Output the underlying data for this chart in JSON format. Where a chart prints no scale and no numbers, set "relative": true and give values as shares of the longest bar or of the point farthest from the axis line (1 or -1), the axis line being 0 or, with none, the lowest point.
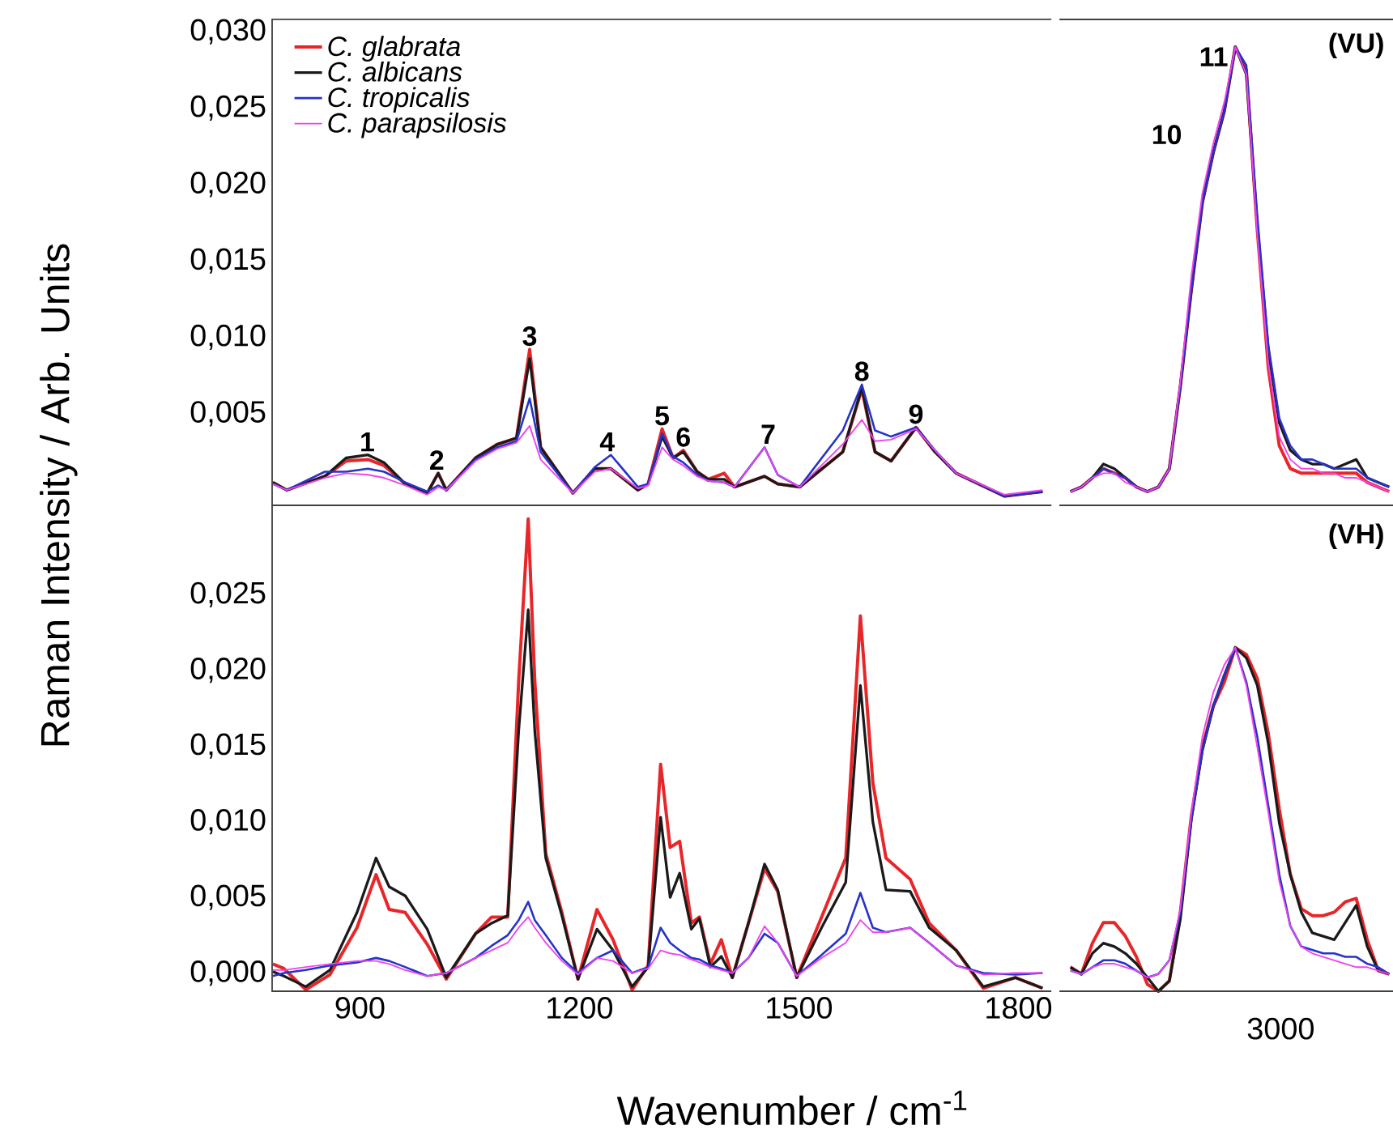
{
  "chart_data": [
    {
      "type": "line",
      "ylabel": "Raman Intensity / Arb. Units",
      "xlim": [
        780,
        1845
      ],
      "ylim": [
        -0.001,
        0.0308
      ],
      "xticks": [
        900,
        1200,
        1500,
        1800
      ],
      "yticks": [
        {
          "value": 0.005,
          "label": "0,005"
        },
        {
          "value": 0.01,
          "label": "0,010"
        },
        {
          "value": 0.015,
          "label": "0,015"
        },
        {
          "value": 0.02,
          "label": "0,020"
        },
        {
          "value": 0.025,
          "label": "0,025"
        },
        {
          "value": 0.03,
          "label": "0,030"
        }
      ],
      "tick_labels": "y",
      "legend": "top left",
      "x": [
        781,
        800,
        852,
        881,
        911,
        933,
        962,
        992,
        1007,
        1018,
        1058,
        1088,
        1114,
        1132,
        1147,
        1191,
        1221,
        1243,
        1280,
        1294,
        1313,
        1328,
        1342,
        1361,
        1376,
        1398,
        1412,
        1453,
        1471,
        1501,
        1560,
        1586,
        1604,
        1626,
        1660,
        1686,
        1715,
        1781,
        1833
      ],
      "series": [
        {
          "name": "C. glabrata",
          "color": "#e8262a",
          "values": [
            0.0005,
            0.0,
            0.0009,
            0.0019,
            0.002,
            0.0016,
            0.0004,
            -0.0002,
            0.0011,
            0.0,
            0.0021,
            0.003,
            0.0034,
            0.0092,
            0.0028,
            -0.0002,
            0.0014,
            0.0014,
            0.0,
            0.0004,
            0.004,
            0.0021,
            0.0026,
            0.0012,
            0.0007,
            0.0011,
            0.0002,
            0.0009,
            0.0004,
            0.0002,
            0.0025,
            0.0066,
            0.0025,
            0.0019,
            0.0041,
            0.0025,
            0.0011,
            -0.0004,
            -0.0001
          ]
        },
        {
          "name": "C. albicans",
          "color": "#1a1a1a",
          "values": [
            0.0005,
            0.0,
            0.0009,
            0.0021,
            0.0023,
            0.0018,
            0.0004,
            -0.0002,
            0.0011,
            0.0,
            0.0021,
            0.003,
            0.0034,
            0.0086,
            0.0028,
            -0.0002,
            0.0014,
            0.0014,
            0.0,
            0.0004,
            0.0035,
            0.0021,
            0.0025,
            0.0012,
            0.0007,
            0.0007,
            0.0002,
            0.0009,
            0.0004,
            0.0002,
            0.0025,
            0.0067,
            0.0025,
            0.0019,
            0.0041,
            0.0025,
            0.0011,
            -0.0004,
            -0.0001
          ]
        },
        {
          "name": "C. tropicalis",
          "color": "#2633c8",
          "values": [
            0.0004,
            0.0,
            0.0012,
            0.0012,
            0.0014,
            0.0012,
            0.0005,
            -0.0001,
            0.0003,
            0.0,
            0.002,
            0.0028,
            0.0032,
            0.006,
            0.0025,
            -0.0002,
            0.0015,
            0.0023,
            0.0002,
            0.0004,
            0.0037,
            0.0022,
            0.0018,
            0.001,
            0.0006,
            0.0005,
            0.0002,
            0.0028,
            0.001,
            0.0002,
            0.0039,
            0.0069,
            0.0039,
            0.0035,
            0.0041,
            0.0026,
            0.0011,
            -0.0004,
            -0.0001
          ]
        },
        {
          "name": "C. parapsilosis",
          "color": "#ee44ee",
          "values": [
            0.0004,
            0.0,
            0.0008,
            0.0011,
            0.001,
            0.0008,
            0.0003,
            -0.0003,
            0.0002,
            0.0,
            0.0019,
            0.0027,
            0.0031,
            0.0042,
            0.002,
            -0.0002,
            0.0012,
            0.0014,
            0.0001,
            0.0003,
            0.0028,
            0.002,
            0.0016,
            0.0009,
            0.0006,
            0.0005,
            0.0002,
            0.0028,
            0.001,
            0.0002,
            0.003,
            0.0046,
            0.0032,
            0.0033,
            0.004,
            0.0026,
            0.0011,
            -0.0003,
            0.0
          ]
        }
      ],
      "annotations": [
        {
          "text": "1",
          "x": 910,
          "y": 0.0023
        },
        {
          "text": "2",
          "x": 1005,
          "y": 0.0011
        },
        {
          "text": "3",
          "x": 1132,
          "y": 0.0092
        },
        {
          "text": "4",
          "x": 1238,
          "y": 0.0023
        },
        {
          "text": "5",
          "x": 1313,
          "y": 0.004
        },
        {
          "text": "6",
          "x": 1342,
          "y": 0.0026
        },
        {
          "text": "7",
          "x": 1458,
          "y": 0.0028
        },
        {
          "text": "8",
          "x": 1586,
          "y": 0.0069
        },
        {
          "text": "9",
          "x": 1660,
          "y": 0.0041
        }
      ]
    },
    {
      "type": "line",
      "relative": true,
      "categories": [
        null,
        null,
        null,
        null,
        null,
        null,
        null,
        null,
        null,
        null,
        null,
        null,
        null,
        null,
        null,
        null,
        null,
        null,
        null,
        null,
        null,
        null,
        null,
        null,
        null,
        null,
        null,
        null,
        null,
        null
      ],
      "series": [
        {
          "color": "#e8262a",
          "values": [
            0.03,
            0.04,
            0.06,
            0.08,
            0.07,
            0.06,
            0.04,
            0.03,
            0.04,
            0.08,
            0.26,
            0.47,
            0.66,
            0.77,
            0.86,
            1.0,
            0.95,
            0.6,
            0.3,
            0.13,
            0.08,
            0.07,
            0.07,
            0.07,
            0.07,
            0.07,
            0.07,
            0.05,
            0.04,
            0.03
          ]
        },
        {
          "color": "#1a1a1a",
          "values": [
            0.03,
            0.04,
            0.06,
            0.09,
            0.08,
            0.06,
            0.04,
            0.03,
            0.04,
            0.08,
            0.26,
            0.47,
            0.66,
            0.77,
            0.86,
            1.0,
            0.94,
            0.61,
            0.34,
            0.18,
            0.12,
            0.1,
            0.09,
            0.09,
            0.08,
            0.09,
            0.1,
            0.06,
            0.05,
            0.04
          ]
        },
        {
          "color": "#2633c8",
          "values": [
            0.03,
            0.04,
            0.06,
            0.08,
            0.07,
            0.06,
            0.04,
            0.03,
            0.04,
            0.08,
            0.26,
            0.47,
            0.66,
            0.77,
            0.86,
            1.0,
            0.96,
            0.63,
            0.35,
            0.19,
            0.13,
            0.1,
            0.1,
            0.09,
            0.08,
            0.08,
            0.08,
            0.06,
            0.05,
            0.04
          ]
        },
        {
          "color": "#ee44ee",
          "values": [
            0.03,
            0.04,
            0.06,
            0.07,
            0.07,
            0.05,
            0.04,
            0.03,
            0.04,
            0.08,
            0.27,
            0.5,
            0.68,
            0.79,
            0.88,
            1.0,
            0.94,
            0.59,
            0.31,
            0.15,
            0.1,
            0.08,
            0.08,
            0.07,
            0.07,
            0.06,
            0.06,
            0.05,
            0.04,
            0.03
          ]
        }
      ],
      "annotations": [
        "10",
        "11",
        "(VU)"
      ]
    },
    {
      "type": "line",
      "xlabel": "Wavenumber / cm$^{-1}$",
      "xlim": [
        780,
        1845
      ],
      "ylim": [
        -0.0012,
        0.0309
      ],
      "xticks": [
        900,
        1200,
        1500,
        1800
      ],
      "yticks": [
        {
          "value": 0.0,
          "label": "0,000"
        },
        {
          "value": 0.005,
          "label": "0,005"
        },
        {
          "value": 0.01,
          "label": "0,010"
        },
        {
          "value": 0.015,
          "label": "0,015"
        },
        {
          "value": 0.02,
          "label": "0,020"
        },
        {
          "value": 0.025,
          "label": "0,025"
        }
      ],
      "x": [
        781,
        796,
        826,
        859,
        896,
        922,
        940,
        962,
        992,
        1018,
        1058,
        1080,
        1102,
        1117,
        1130,
        1139,
        1154,
        1176,
        1198,
        1224,
        1246,
        1272,
        1294,
        1311,
        1324,
        1337,
        1353,
        1364,
        1379,
        1394,
        1409,
        1431,
        1453,
        1471,
        1497,
        1531,
        1564,
        1584,
        1601,
        1619,
        1652,
        1678,
        1715,
        1752,
        1796,
        1833
      ],
      "series": [
        {
          "color": "#e8262a",
          "values": [
            0.0006,
            0.0003,
            -0.0011,
            -0.0001,
            0.003,
            0.0065,
            0.0042,
            0.004,
            0.0019,
            -0.0004,
            0.0026,
            0.0037,
            0.0037,
            0.0193,
            0.03,
            0.0193,
            0.0079,
            0.004,
            -0.0004,
            0.0042,
            0.0022,
            -0.0011,
            0.0005,
            0.0138,
            0.0083,
            0.0087,
            0.0033,
            0.0037,
            0.0006,
            0.0022,
            -0.0003,
            0.0033,
            0.0069,
            0.0054,
            -0.0003,
            0.0037,
            0.0076,
            0.0236,
            0.0126,
            0.0076,
            0.0062,
            0.0033,
            0.0015,
            -0.001,
            -0.0003,
            -0.001
          ]
        },
        {
          "color": "#1a1a1a",
          "values": [
            0.0001,
            -0.0002,
            -0.0009,
            0.0002,
            0.004,
            0.0076,
            0.0057,
            0.0051,
            0.0029,
            -0.0003,
            0.0026,
            0.0033,
            0.0038,
            0.016,
            0.024,
            0.016,
            0.0076,
            0.0038,
            -0.0004,
            0.0029,
            0.0015,
            -0.0009,
            0.0004,
            0.0103,
            0.005,
            0.0066,
            0.0029,
            0.0036,
            0.0004,
            0.0011,
            -0.0003,
            0.0033,
            0.0072,
            0.0055,
            -0.0003,
            0.003,
            0.006,
            0.019,
            0.01,
            0.0055,
            0.0054,
            0.003,
            0.0015,
            -0.0009,
            -0.0003,
            -0.001
          ]
        },
        {
          "color": "#2633c8",
          "values": [
            -0.0002,
            0.0,
            0.0002,
            0.0005,
            0.0007,
            0.001,
            0.0008,
            0.0004,
            -0.0002,
            0.0,
            0.001,
            0.0018,
            0.0025,
            0.0035,
            0.0047,
            0.0035,
            0.0025,
            0.001,
            0.0,
            0.001,
            0.0015,
            0.0,
            0.0004,
            0.003,
            0.002,
            0.0015,
            0.001,
            0.0009,
            0.0005,
            0.0003,
            0.0,
            0.001,
            0.0026,
            0.002,
            -0.0002,
            0.0012,
            0.0026,
            0.0053,
            0.003,
            0.0027,
            0.003,
            0.002,
            0.0005,
            0.0,
            -0.0001,
            0.0
          ]
        },
        {
          "color": "#ee44ee",
          "values": [
            0.0002,
            0.0002,
            0.0004,
            0.0006,
            0.0008,
            0.0008,
            0.0006,
            0.0002,
            -0.0002,
            0.0,
            0.001,
            0.0015,
            0.002,
            0.003,
            0.0037,
            0.003,
            0.002,
            0.0008,
            -0.0001,
            0.001,
            0.0008,
            0.0,
            0.0003,
            0.0015,
            0.0013,
            0.0012,
            0.0009,
            0.0007,
            0.0004,
            0.0002,
            0.0,
            0.001,
            0.0031,
            0.002,
            -0.0002,
            0.001,
            0.002,
            0.0035,
            0.0027,
            0.0027,
            0.003,
            0.002,
            0.0005,
            -0.0001,
            0.0,
            0.0
          ]
        }
      ]
    },
    {
      "type": "line",
      "relative": true,
      "categories": [
        null,
        null,
        null,
        null,
        null,
        null,
        null,
        null,
        null,
        null,
        null,
        null,
        null,
        null,
        null,
        null,
        null,
        null,
        null,
        null,
        null,
        null,
        null,
        null,
        null,
        null,
        null,
        null,
        null,
        null
      ],
      "series": [
        {
          "color": "#e8262a",
          "values": [
            0.07,
            0.05,
            0.14,
            0.2,
            0.2,
            0.16,
            0.1,
            0.02,
            0.0,
            0.03,
            0.23,
            0.51,
            0.71,
            0.83,
            0.9,
            1.0,
            0.98,
            0.91,
            0.75,
            0.53,
            0.34,
            0.24,
            0.22,
            0.22,
            0.23,
            0.26,
            0.27,
            0.15,
            0.06,
            0.05
          ]
        },
        {
          "color": "#1a1a1a",
          "values": [
            0.07,
            0.05,
            0.11,
            0.14,
            0.13,
            0.11,
            0.08,
            0.04,
            0.0,
            0.03,
            0.21,
            0.5,
            0.7,
            0.83,
            0.92,
            1.0,
            0.97,
            0.89,
            0.72,
            0.49,
            0.34,
            0.23,
            0.17,
            0.16,
            0.15,
            0.2,
            0.25,
            0.13,
            0.06,
            0.05
          ]
        },
        {
          "color": "#2633c8",
          "values": [
            0.06,
            0.05,
            0.07,
            0.09,
            0.09,
            0.08,
            0.06,
            0.04,
            0.05,
            0.09,
            0.23,
            0.5,
            0.7,
            0.83,
            0.92,
            1.0,
            0.9,
            0.74,
            0.54,
            0.34,
            0.19,
            0.13,
            0.12,
            0.11,
            0.11,
            0.1,
            0.1,
            0.08,
            0.07,
            0.05
          ]
        },
        {
          "color": "#ee44ee",
          "values": [
            0.06,
            0.05,
            0.07,
            0.08,
            0.08,
            0.07,
            0.06,
            0.04,
            0.05,
            0.09,
            0.24,
            0.52,
            0.74,
            0.87,
            0.95,
            1.0,
            0.89,
            0.71,
            0.52,
            0.32,
            0.19,
            0.13,
            0.11,
            0.1,
            0.09,
            0.08,
            0.07,
            0.07,
            0.06,
            0.05
          ]
        }
      ],
      "annotations": [
        "(VH)",
        "3000"
      ]
    }
  ]
}
